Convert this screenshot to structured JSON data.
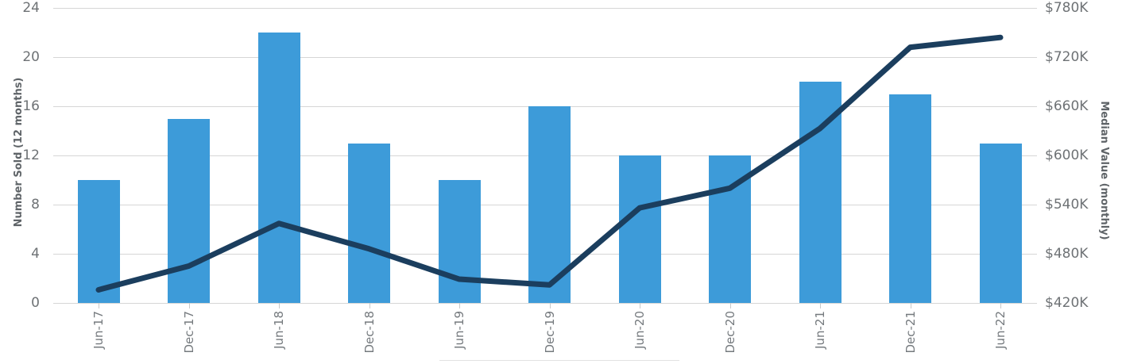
{
  "chart_data": {
    "type": "combo-bar-line",
    "categories": [
      "Jun-17",
      "Dec-17",
      "Jun-18",
      "Dec-18",
      "Jun-19",
      "Dec-19",
      "Jun-20",
      "Dec-20",
      "Jun-21",
      "Dec-21",
      "Jun-22"
    ],
    "series": [
      {
        "name": "Number Sold",
        "type": "bar",
        "axis": "left",
        "values": [
          10,
          15,
          22,
          13,
          10,
          16,
          12,
          12,
          18,
          17,
          13
        ]
      },
      {
        "name": "Median Value",
        "type": "line",
        "axis": "right",
        "values_thousands": [
          436,
          465,
          517,
          486,
          449,
          442,
          536,
          560,
          633,
          732,
          744
        ]
      }
    ],
    "left_axis": {
      "label": "Number Sold (12 months)",
      "ticks": [
        "0",
        "4",
        "8",
        "12",
        "16",
        "20",
        "24"
      ],
      "min": 0,
      "max": 24
    },
    "right_axis": {
      "label": "Median Value (monthly)",
      "ticks": [
        "$420K",
        "$480K",
        "$540K",
        "$600K",
        "$660K",
        "$720K",
        "$780K"
      ],
      "min": 420,
      "max": 780
    },
    "grid": true,
    "legend_position": "none"
  },
  "colors": {
    "bar": "#3d9bd9",
    "line": "#1b3e5e",
    "gridline": "#d6d6d6",
    "background": "#ffffff"
  }
}
